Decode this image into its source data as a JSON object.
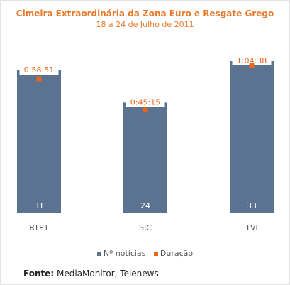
{
  "chart_data": {
    "type": "bar",
    "title": "Cimeira Extraordinária da Zona Euro e Resgate Grego",
    "subtitle": "18 a 24 de Julho de 2011",
    "categories": [
      "RTP1",
      "SIC",
      "TVI"
    ],
    "series": [
      {
        "name": "Nº notícias",
        "type": "bar",
        "values": [
          31,
          24,
          33
        ],
        "color": "#5b7391"
      },
      {
        "name": "Duração",
        "type": "marker",
        "values": [
          58.85,
          45.25,
          64.63
        ],
        "labels": [
          "0:58:51",
          "0:45:15",
          "1:04:38"
        ],
        "color": "#e8651a"
      }
    ],
    "ylim_bars": [
      0,
      33
    ],
    "ylim_markers": [
      0,
      66.67
    ],
    "grid": false,
    "legend": "bottom"
  },
  "source": {
    "label": "Fonte:",
    "text": "MediaMonitor, Telenews"
  }
}
